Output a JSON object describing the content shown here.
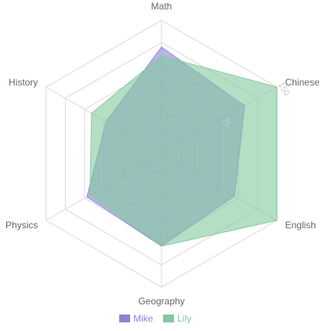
{
  "chart_data": {
    "type": "radar",
    "title": "",
    "indicators": [
      "Math",
      "Chinese",
      "English",
      "Geography",
      "Physics",
      "History"
    ],
    "max": 150,
    "ticks": [
      {
        "value": 50,
        "label": ""
      },
      {
        "value": 75,
        "label": "75"
      },
      {
        "value": 100,
        "label": ""
      },
      {
        "value": 125,
        "label": ""
      },
      {
        "value": 150,
        "label": "150"
      }
    ],
    "grid_rings": [
      25,
      50,
      75,
      100,
      125,
      150
    ],
    "series": [
      {
        "name": "Mike",
        "color": "#8b84d7",
        "values": [
          120,
          108,
          95,
          104,
          97,
          72
        ]
      },
      {
        "name": "Lily",
        "color": "#82c99d",
        "values": [
          110,
          150,
          150,
          104,
          93,
          91
        ]
      }
    ],
    "legend": "bottom",
    "grid": true
  }
}
